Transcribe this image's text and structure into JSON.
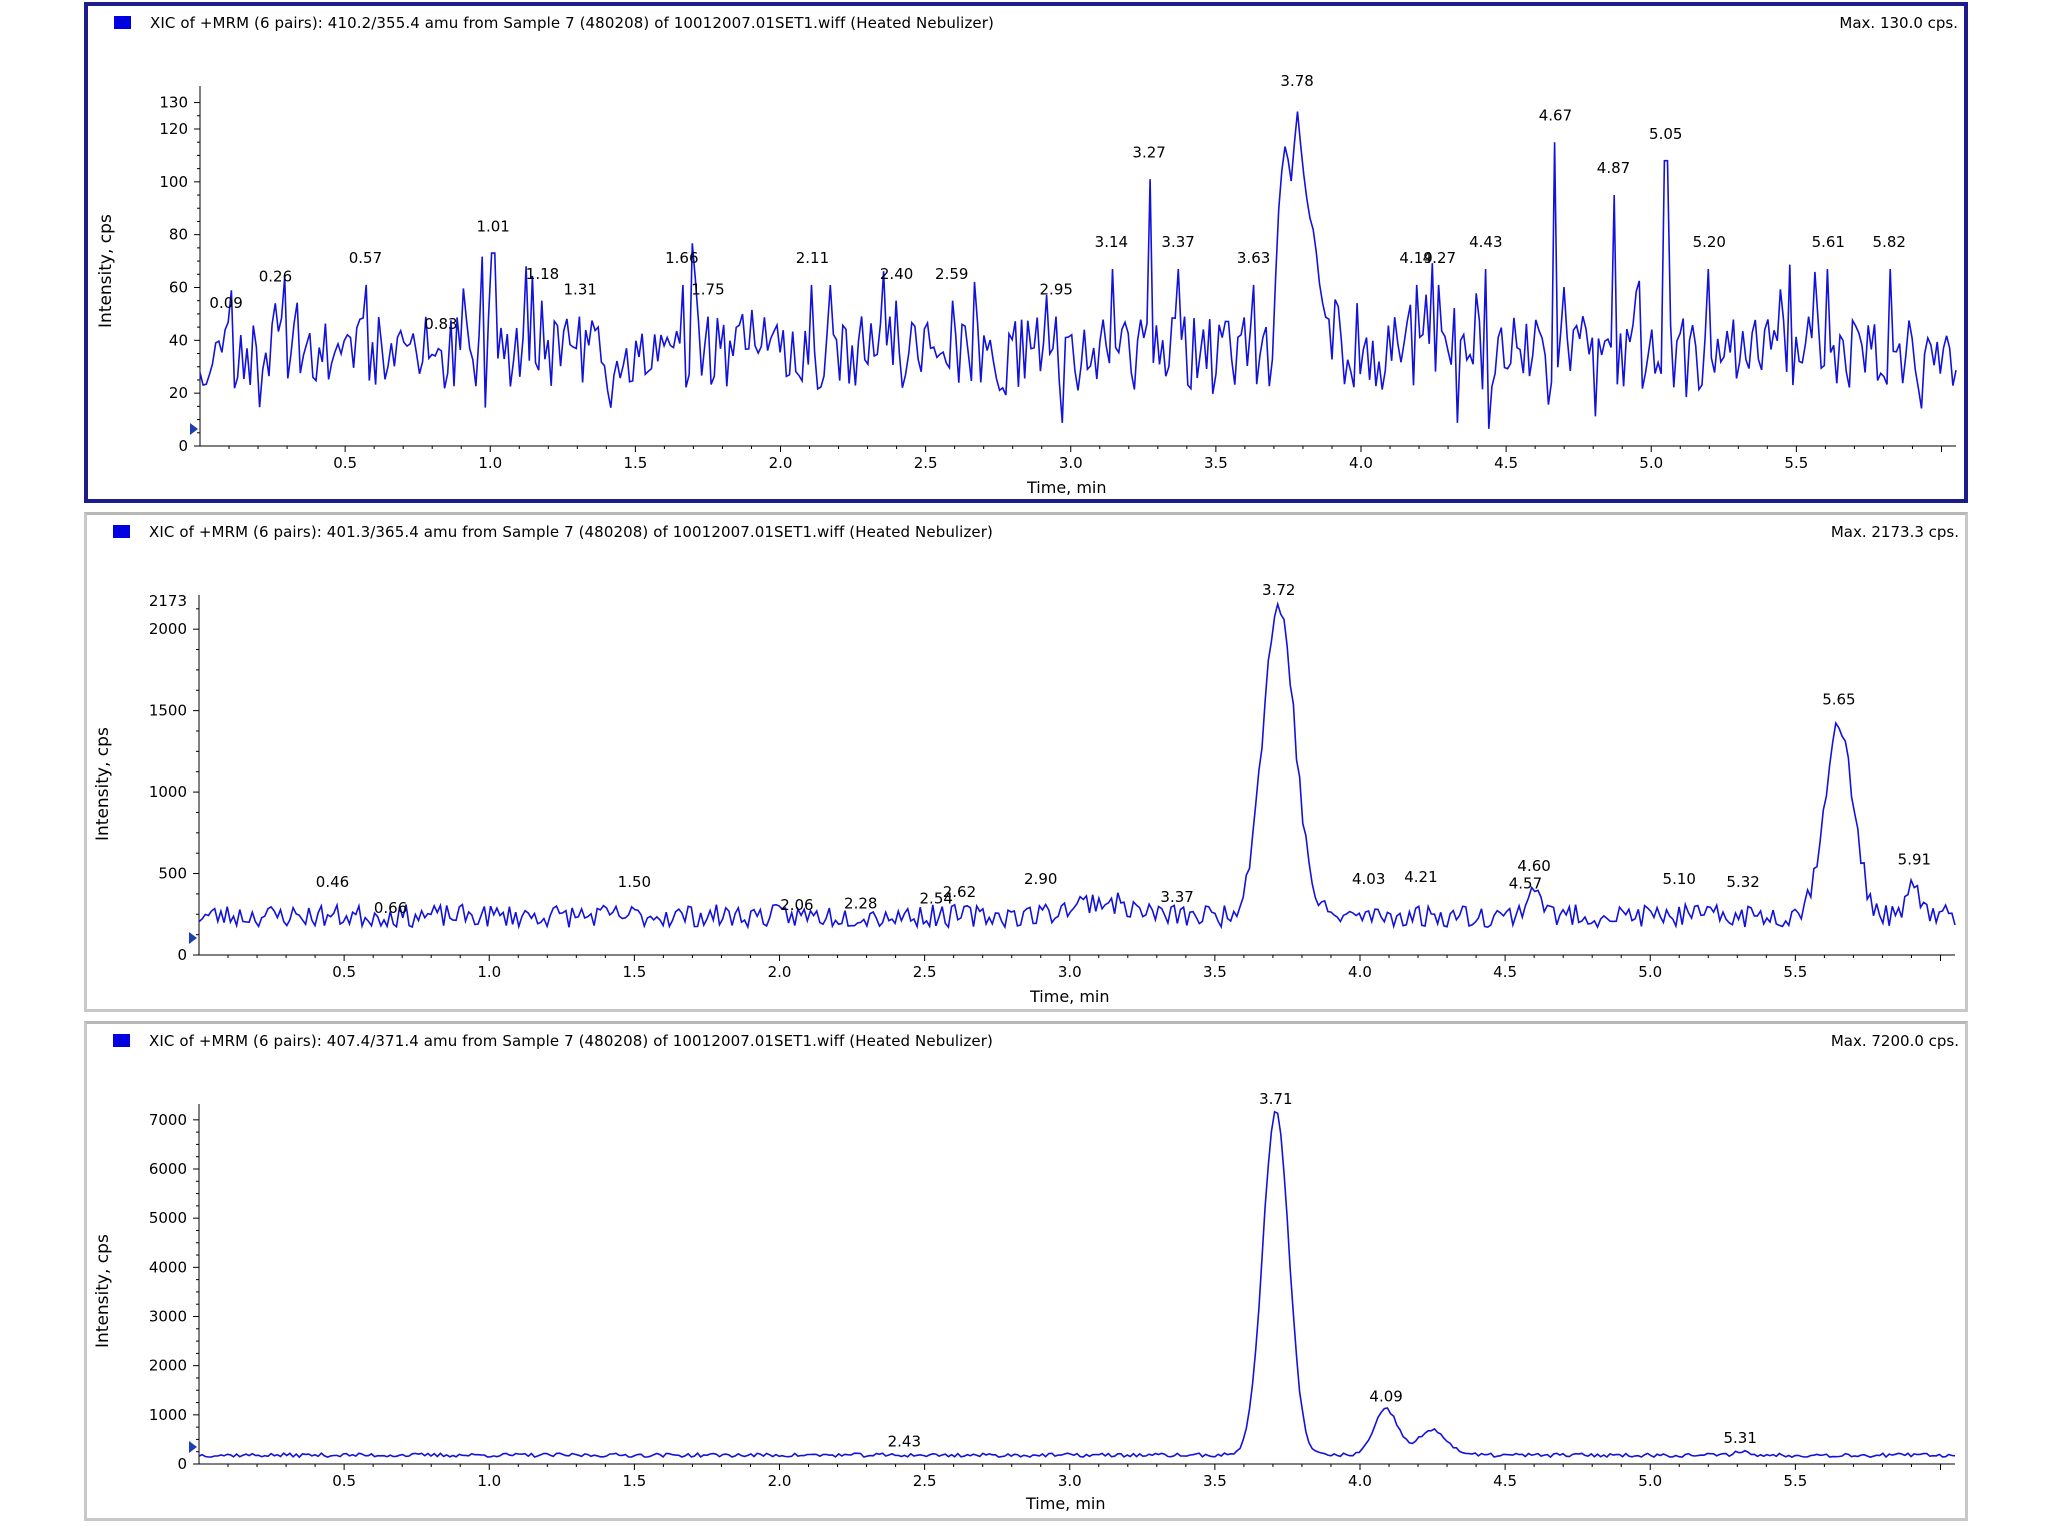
{
  "colors": {
    "trace": "#1212dc",
    "active_border": "#1c1c8a",
    "marker": "#0000e0"
  },
  "chart_data": [
    {
      "type": "line",
      "title": "XIC of +MRM (6 pairs): 410.2/355.4 amu from Sample 7 (480208) of 10012007.01SET1.wiff (Heated Nebulizer)",
      "max_label": "Max. 130.0 cps.",
      "xlabel": "Time, min",
      "ylabel": "Intensity, cps",
      "xlim": [
        0.0,
        6.05
      ],
      "ylim": [
        0,
        134
      ],
      "x_ticks": [
        0.5,
        1.0,
        1.5,
        2.0,
        2.5,
        3.0,
        3.5,
        4.0,
        4.5,
        5.0,
        5.5
      ],
      "x_tick_labels": [
        "0.5",
        "1.0",
        "1.5",
        "2.0",
        "2.5",
        "3.0",
        "3.5",
        "4.0",
        "4.5",
        "5.0",
        "5.5"
      ],
      "y_ticks": [
        0,
        20,
        40,
        60,
        80,
        100,
        120,
        130
      ],
      "y_tick_labels": [
        "0",
        "20",
        "40",
        "60",
        "80",
        "100",
        "120",
        "130"
      ],
      "peak_labels": [
        {
          "x": 0.09,
          "y": 50,
          "label": "0.09"
        },
        {
          "x": 0.26,
          "y": 60,
          "label": "0.26"
        },
        {
          "x": 0.57,
          "y": 67,
          "label": "0.57"
        },
        {
          "x": 0.83,
          "y": 42,
          "label": "0.83"
        },
        {
          "x": 1.01,
          "y": 79,
          "label": "1.01"
        },
        {
          "x": 1.18,
          "y": 61,
          "label": "1.18"
        },
        {
          "x": 1.31,
          "y": 55,
          "label": "1.31"
        },
        {
          "x": 1.66,
          "y": 67,
          "label": "1.66"
        },
        {
          "x": 1.75,
          "y": 55,
          "label": "1.75"
        },
        {
          "x": 2.11,
          "y": 67,
          "label": "2.11"
        },
        {
          "x": 2.4,
          "y": 61,
          "label": "2.40"
        },
        {
          "x": 2.59,
          "y": 61,
          "label": "2.59"
        },
        {
          "x": 2.95,
          "y": 55,
          "label": "2.95"
        },
        {
          "x": 3.14,
          "y": 73,
          "label": "3.14"
        },
        {
          "x": 3.27,
          "y": 107,
          "label": "3.27"
        },
        {
          "x": 3.37,
          "y": 73,
          "label": "3.37"
        },
        {
          "x": 3.63,
          "y": 67,
          "label": "3.63"
        },
        {
          "x": 3.78,
          "y": 134,
          "label": "3.78"
        },
        {
          "x": 4.19,
          "y": 67,
          "label": "4.19"
        },
        {
          "x": 4.27,
          "y": 67,
          "label": "4.27"
        },
        {
          "x": 4.43,
          "y": 73,
          "label": "4.43"
        },
        {
          "x": 4.67,
          "y": 121,
          "label": "4.67"
        },
        {
          "x": 4.87,
          "y": 101,
          "label": "4.87"
        },
        {
          "x": 5.05,
          "y": 114,
          "label": "5.05"
        },
        {
          "x": 5.2,
          "y": 73,
          "label": "5.20"
        },
        {
          "x": 5.61,
          "y": 73,
          "label": "5.61"
        },
        {
          "x": 5.82,
          "y": 73,
          "label": "5.82"
        }
      ],
      "baseline": 35,
      "noise": 14,
      "seed": 11,
      "peaks": [],
      "segments": [
        {
          "from": 3.7,
          "to": 3.9,
          "points": [
            [
              3.7,
              50
            ],
            [
              3.72,
              98
            ],
            [
              3.74,
              115
            ],
            [
              3.76,
              100
            ],
            [
              3.78,
              128
            ],
            [
              3.8,
              105
            ],
            [
              3.82,
              88
            ],
            [
              3.84,
              80
            ],
            [
              3.86,
              58
            ],
            [
              3.88,
              48
            ],
            [
              3.9,
              48
            ]
          ]
        }
      ]
    },
    {
      "type": "line",
      "title": "XIC of +MRM (6 pairs): 401.3/365.4 amu from Sample 7 (480208) of 10012007.01SET1.wiff (Heated Nebulizer)",
      "max_label": "Max. 2173.3 cps.",
      "xlabel": "Time, min",
      "ylabel": "Intensity, cps",
      "xlim": [
        0.0,
        6.05
      ],
      "ylim": [
        0,
        2173
      ],
      "x_ticks": [
        0.5,
        1.0,
        1.5,
        2.0,
        2.5,
        3.0,
        3.5,
        4.0,
        4.5,
        5.0,
        5.5
      ],
      "x_tick_labels": [
        "0.5",
        "1.0",
        "1.5",
        "2.0",
        "2.5",
        "3.0",
        "3.5",
        "4.0",
        "4.5",
        "5.0",
        "5.5"
      ],
      "y_ticks": [
        0,
        500,
        1000,
        1500,
        2000,
        2173
      ],
      "y_tick_labels": [
        "0",
        "500",
        "1000",
        "1500",
        "2000",
        "2173"
      ],
      "peak_labels": [
        {
          "x": 0.46,
          "y": 380,
          "label": "0.46"
        },
        {
          "x": 0.66,
          "y": 220,
          "label": "0.66"
        },
        {
          "x": 1.5,
          "y": 380,
          "label": "1.50"
        },
        {
          "x": 2.06,
          "y": 240,
          "label": "2.06"
        },
        {
          "x": 2.28,
          "y": 250,
          "label": "2.28"
        },
        {
          "x": 2.54,
          "y": 280,
          "label": "2.54"
        },
        {
          "x": 2.62,
          "y": 320,
          "label": "2.62"
        },
        {
          "x": 2.9,
          "y": 400,
          "label": "2.90"
        },
        {
          "x": 3.37,
          "y": 290,
          "label": "3.37"
        },
        {
          "x": 3.72,
          "y": 2173,
          "label": "3.72"
        },
        {
          "x": 4.03,
          "y": 400,
          "label": "4.03"
        },
        {
          "x": 4.21,
          "y": 410,
          "label": "4.21"
        },
        {
          "x": 4.57,
          "y": 370,
          "label": "4.57"
        },
        {
          "x": 4.6,
          "y": 480,
          "label": "4.60"
        },
        {
          "x": 5.1,
          "y": 400,
          "label": "5.10"
        },
        {
          "x": 5.32,
          "y": 380,
          "label": "5.32"
        },
        {
          "x": 5.65,
          "y": 1500,
          "label": "5.65"
        },
        {
          "x": 5.91,
          "y": 520,
          "label": "5.91"
        }
      ],
      "baseline": 240,
      "noise": 70,
      "seed": 23,
      "peaks": [
        [
          3.72,
          1900,
          0.055
        ],
        [
          5.65,
          1150,
          0.05
        ],
        [
          5.91,
          200,
          0.02
        ],
        [
          4.6,
          180,
          0.025
        ],
        [
          3.1,
          90,
          0.1
        ]
      ],
      "segments": []
    },
    {
      "type": "line",
      "title": "XIC of +MRM (6 pairs): 407.4/371.4 amu from Sample 7 (480208) of 10012007.01SET1.wiff (Heated Nebulizer)",
      "max_label": "Max. 7200.0 cps.",
      "xlabel": "Time, min",
      "ylabel": "Intensity, cps",
      "xlim": [
        0.0,
        6.05
      ],
      "ylim": [
        0,
        7200
      ],
      "x_ticks": [
        0.5,
        1.0,
        1.5,
        2.0,
        2.5,
        3.0,
        3.5,
        4.0,
        4.5,
        5.0,
        5.5
      ],
      "x_tick_labels": [
        "0.5",
        "1.0",
        "1.5",
        "2.0",
        "2.5",
        "3.0",
        "3.5",
        "4.0",
        "4.5",
        "5.0",
        "5.5"
      ],
      "y_ticks": [
        0,
        1000,
        2000,
        3000,
        4000,
        5000,
        6000,
        7000
      ],
      "y_tick_labels": [
        "0",
        "1000",
        "2000",
        "3000",
        "4000",
        "5000",
        "6000",
        "7000"
      ],
      "peak_labels": [
        {
          "x": 2.43,
          "y": 230,
          "label": "2.43"
        },
        {
          "x": 3.71,
          "y": 7200,
          "label": "3.71"
        },
        {
          "x": 4.09,
          "y": 1150,
          "label": "4.09"
        },
        {
          "x": 5.31,
          "y": 310,
          "label": "5.31"
        }
      ],
      "baseline": 180,
      "noise": 40,
      "seed": 37,
      "peaks": [
        [
          3.71,
          7000,
          0.045
        ],
        [
          4.09,
          930,
          0.04
        ],
        [
          4.25,
          500,
          0.05
        ],
        [
          5.31,
          90,
          0.02
        ]
      ],
      "segments": []
    }
  ]
}
